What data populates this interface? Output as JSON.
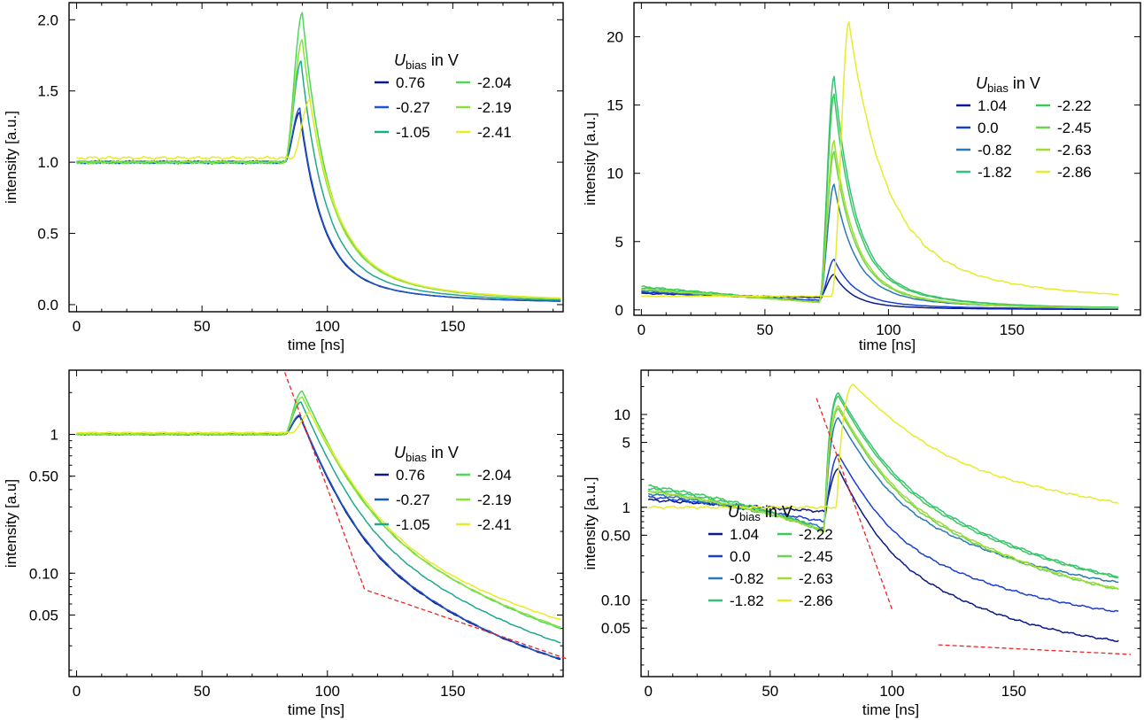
{
  "chart_data": [
    {
      "type": "line",
      "panel": "top-left",
      "xlabel": "time",
      "xunit": "ns",
      "ylabel": "intensity [a.u.]",
      "xlim": [
        -3,
        194
      ],
      "ylim": [
        -0.05,
        2.12
      ],
      "yscale": "linear",
      "xticks": [
        "0",
        "50",
        "100",
        "150"
      ],
      "yticks": [
        "0.0",
        "0.5",
        "1.0",
        "1.5",
        "2.0"
      ],
      "legend": {
        "title": "U",
        "title_sub": "bias",
        "title_suffix": " in V",
        "position": "upper-right"
      },
      "series": [
        {
          "name": "0.76",
          "color": "#0b1a85",
          "baseline": 1.0,
          "onset": 83,
          "peak_t": 89,
          "peak": 1.35,
          "tau": 8.5,
          "tail": 0.025
        },
        {
          "name": "-0.27",
          "color": "#1f56c7",
          "baseline": 1.0,
          "onset": 83,
          "peak_t": 89,
          "peak": 1.38,
          "tau": 8.5,
          "tail": 0.025
        },
        {
          "name": "-1.05",
          "color": "#1ea88d",
          "baseline": 1.0,
          "onset": 83,
          "peak_t": 89.5,
          "peak": 1.71,
          "tau": 9,
          "tail": 0.03
        },
        {
          "name": "-2.04",
          "color": "#4fd858",
          "baseline": 1.0,
          "onset": 83,
          "peak_t": 90,
          "peak": 2.05,
          "tau": 9.5,
          "tail": 0.035
        },
        {
          "name": "-2.19",
          "color": "#8ae23a",
          "baseline": 1.0,
          "onset": 83,
          "peak_t": 90,
          "peak": 1.86,
          "tau": 10,
          "tail": 0.035
        },
        {
          "name": "-2.41",
          "color": "#e6ec2a",
          "baseline": 1.03,
          "onset": 86,
          "peak_t": 93,
          "peak": 1.44,
          "tau": 11,
          "tail": 0.04
        }
      ]
    },
    {
      "type": "line",
      "panel": "top-right",
      "xlabel": "time",
      "xunit": "ns",
      "ylabel": "intensity [a.u.]",
      "xlim": [
        -3,
        202
      ],
      "ylim": [
        -0.4,
        22.5
      ],
      "yscale": "linear",
      "xticks": [
        "0",
        "50",
        "100",
        "150"
      ],
      "yticks": [
        "0",
        "5",
        "10",
        "15",
        "20"
      ],
      "legend": {
        "title": "U",
        "title_sub": "bias",
        "title_suffix": " in V",
        "position": "right"
      },
      "series": [
        {
          "name": "1.04",
          "color": "#0b1a85",
          "b0": 1.2,
          "b1": 0.9,
          "onset": 72,
          "peak_t": 78,
          "peak": 2.6,
          "tau": 7,
          "tail": 0.05
        },
        {
          "name": "0.0",
          "color": "#1a3fd0",
          "b0": 1.3,
          "b1": 0.7,
          "onset": 72,
          "peak_t": 78,
          "peak": 3.7,
          "tau": 8,
          "tail": 0.1
        },
        {
          "name": "-0.82",
          "color": "#2979b5",
          "b0": 1.4,
          "b1": 0.6,
          "onset": 72,
          "peak_t": 78,
          "peak": 9.2,
          "tau": 8,
          "tail": 0.2
        },
        {
          "name": "-1.82",
          "color": "#36c27a",
          "b0": 1.6,
          "b1": 0.55,
          "onset": 72,
          "peak_t": 78,
          "peak": 17.1,
          "tau": 8,
          "tail": 0.2
        },
        {
          "name": "-2.22",
          "color": "#3ac95a",
          "b0": 1.7,
          "b1": 0.55,
          "onset": 72,
          "peak_t": 78,
          "peak": 15.8,
          "tau": 8,
          "tail": 0.2
        },
        {
          "name": "-2.45",
          "color": "#6ed44c",
          "b0": 1.5,
          "b1": 0.55,
          "onset": 72,
          "peak_t": 78,
          "peak": 11.6,
          "tau": 8,
          "tail": 0.15
        },
        {
          "name": "-2.63",
          "color": "#a0dc34",
          "b0": 1.5,
          "b1": 0.55,
          "onset": 72,
          "peak_t": 78,
          "peak": 12.4,
          "tau": 8,
          "tail": 0.15
        },
        {
          "name": "-2.86",
          "color": "#e6ec2a",
          "b0": 1.0,
          "b1": 1.0,
          "onset": 77,
          "peak_t": 84,
          "peak": 21.1,
          "tau": 14,
          "tail": 1.1
        }
      ]
    },
    {
      "type": "line",
      "panel": "bottom-left",
      "xlabel": "time",
      "xunit": "ns",
      "ylabel": "intensity [a.u]",
      "xlim": [
        -3,
        194
      ],
      "ylim": [
        0.018,
        2.9
      ],
      "yscale": "log",
      "xticks": [
        "0",
        "50",
        "100",
        "150"
      ],
      "yticks": [
        {
          "v": 1,
          "label": "1"
        },
        {
          "v": 0.5,
          "label": "0.50"
        },
        {
          "v": 0.1,
          "label": "0.10"
        },
        {
          "v": 0.05,
          "label": "0.05"
        }
      ],
      "legend": {
        "title": "U",
        "title_sub": "bias",
        "title_suffix": " in V",
        "position": "right"
      },
      "fit_lines": [
        {
          "x": [
            83,
            115
          ],
          "y": [
            2.8,
            0.075
          ]
        },
        {
          "x": [
            116,
            196
          ],
          "y": [
            0.075,
            0.024
          ]
        }
      ]
    },
    {
      "type": "line",
      "panel": "bottom-right",
      "xlabel": "time",
      "xunit": "ns",
      "ylabel": "intensity [a.u.]",
      "xlim": [
        -3,
        202
      ],
      "ylim": [
        0.015,
        30
      ],
      "yscale": "log",
      "xticks": [
        "0",
        "50",
        "100",
        "150"
      ],
      "yticks": [
        {
          "v": 10,
          "label": "10"
        },
        {
          "v": 5,
          "label": "5"
        },
        {
          "v": 1,
          "label": "1"
        },
        {
          "v": 0.5,
          "label": "0.50"
        },
        {
          "v": 0.1,
          "label": "0.10"
        },
        {
          "v": 0.05,
          "label": "0.05"
        }
      ],
      "legend": {
        "title": "U",
        "title_sub": "bias",
        "title_suffix": " in V",
        "position": "lower-left"
      },
      "fit_lines": [
        {
          "x": [
            69,
            100
          ],
          "y": [
            15,
            0.08
          ]
        },
        {
          "x": [
            119,
            198
          ],
          "y": [
            0.033,
            0.026
          ]
        }
      ]
    }
  ]
}
